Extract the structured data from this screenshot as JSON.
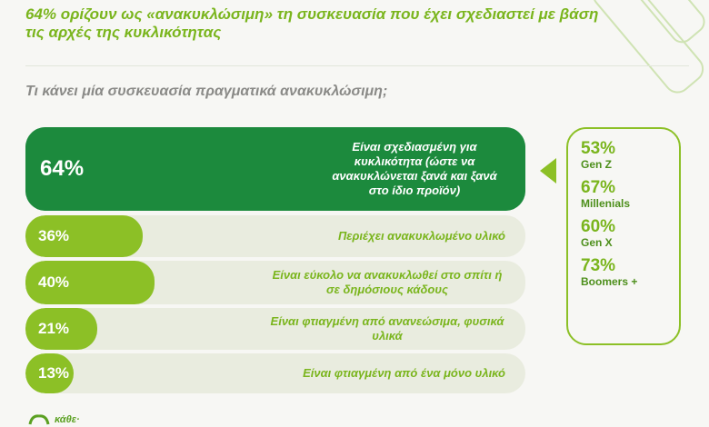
{
  "headline": "64% ορίζουν ως «ανακυκλώσιμη» τη συσκευασία που έχει σχεδιαστεί με βάση τις αρχές της κυκλικότητας",
  "question": "Τι κάνει μία συσκευασία πραγματικά ανακυκλώσιμη;",
  "colors": {
    "dark": "#1c8a3d",
    "light": "#8cc026",
    "track": "#e9ecdf"
  },
  "chart_data": {
    "type": "bar",
    "orientation": "horizontal",
    "unit": "%",
    "xlim": [
      0,
      100
    ],
    "categories": [
      "Είναι σχεδιασμένη για κυκλικότητα (ώστε να ανακυκλώνεται ξανά και ξανά στο ίδιο προϊόν)",
      "Περιέχει ανακυκλωμένο υλικό",
      "Είναι εύκολο να ανακυκλωθεί στο σπίτι ή σε δημόσιους κάδους",
      "Είναι φτιαγμένη από ανανεώσιμα, φυσικά υλικά",
      "Είναι φτιαγμένη από ένα μόνο υλικό"
    ],
    "values": [
      64,
      36,
      40,
      21,
      13
    ],
    "labels": [
      "64%",
      "36%",
      "40%",
      "21%",
      "13%"
    ]
  },
  "generations": [
    {
      "pct": "53%",
      "name": "Gen Z"
    },
    {
      "pct": "67%",
      "name": "Millenials"
    },
    {
      "pct": "60%",
      "name": "Gen X"
    },
    {
      "pct": "73%",
      "name": "Boomers +"
    }
  ],
  "logo": {
    "text": "κάθε·",
    "icon": "recycle-arrows-icon"
  }
}
